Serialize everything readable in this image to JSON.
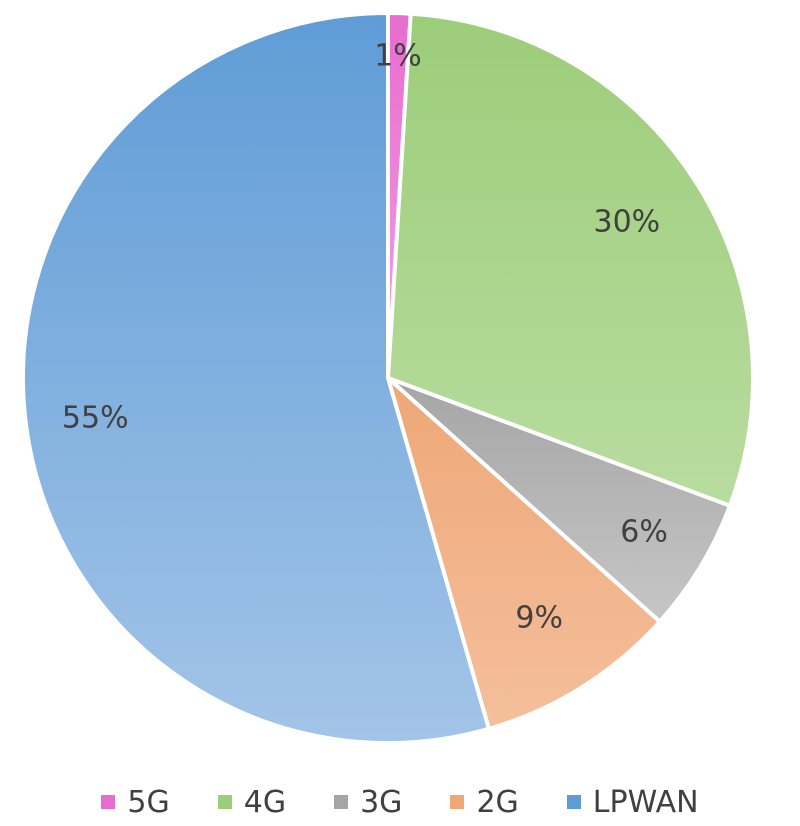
{
  "chart_data": {
    "type": "pie",
    "title": "",
    "start_angle_deg": 0,
    "direction": "clockwise",
    "legend_position": "bottom",
    "slices": [
      {
        "name": "5G",
        "value": 1,
        "label": "1%",
        "color": "#e86ccf",
        "color_light": "#f2a3e3"
      },
      {
        "name": "4G",
        "value": 30,
        "label": "30%",
        "color": "#9ccd79",
        "color_light": "#b9dca0"
      },
      {
        "name": "3G",
        "value": 6,
        "label": "6%",
        "color": "#a5a5a5",
        "color_light": "#c6c6c6"
      },
      {
        "name": "2G",
        "value": 9,
        "label": "9%",
        "color": "#eea777",
        "color_light": "#f4bf9c"
      },
      {
        "name": "LPWAN",
        "value": 55,
        "label": "55%",
        "color": "#5f9cd6",
        "color_light": "#a3c4e8"
      }
    ]
  }
}
